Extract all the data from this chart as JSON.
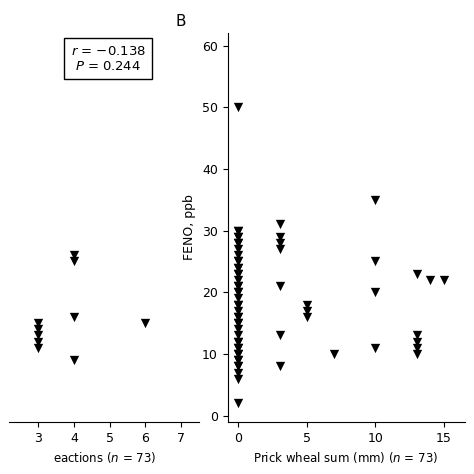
{
  "panel_B": {
    "xlabel": "Prick wheal sum (mm) ($\\it{n}$ = 73)",
    "ylabel": "FENO, ppb",
    "panel_label": "B",
    "xlim": [
      -0.8,
      16.5
    ],
    "ylim": [
      -1,
      62
    ],
    "xticks": [
      0,
      5,
      10,
      15
    ],
    "yticks": [
      0,
      10,
      20,
      30,
      40,
      50,
      60
    ],
    "x": [
      0,
      0,
      0,
      0,
      0,
      0,
      0,
      0,
      0,
      0,
      0,
      0,
      0,
      0,
      0,
      0,
      0,
      0,
      0,
      0,
      0,
      0,
      0,
      0,
      0,
      0,
      0,
      0,
      0,
      0,
      0,
      0,
      0,
      0,
      0,
      0,
      0,
      0,
      0,
      0,
      0,
      0,
      0,
      3,
      3,
      3,
      3,
      3,
      3,
      3,
      5,
      5,
      5,
      7,
      10,
      10,
      10,
      10,
      13,
      13,
      13,
      13,
      13,
      14,
      15
    ],
    "y": [
      50,
      30,
      30,
      29,
      29,
      28,
      28,
      27,
      26,
      25,
      25,
      24,
      24,
      23,
      23,
      22,
      21,
      21,
      20,
      20,
      19,
      18,
      18,
      17,
      16,
      16,
      15,
      15,
      14,
      13,
      12,
      12,
      11,
      11,
      10,
      10,
      9,
      9,
      8,
      8,
      7,
      6,
      2,
      31,
      29,
      28,
      27,
      21,
      13,
      8,
      18,
      17,
      16,
      10,
      35,
      25,
      20,
      11,
      23,
      13,
      12,
      11,
      10,
      22,
      22
    ]
  },
  "panel_A": {
    "annotation_line1": "$\\it{r}$ = −0.138",
    "annotation_line2": "$\\it{P}$ = 0.244",
    "xlim": [
      2.2,
      7.5
    ],
    "ylim": [
      -1,
      62
    ],
    "xticks": [
      3,
      4,
      5,
      6,
      7
    ],
    "xlabel": "eactions ($\\it{n}$ = 73)",
    "x": [
      3,
      3,
      3,
      3,
      3,
      4,
      4,
      4,
      4,
      6
    ],
    "y": [
      15,
      14,
      13,
      12,
      11,
      26,
      25,
      16,
      9,
      15
    ]
  },
  "marker": "v",
  "marker_color": "black",
  "marker_size": 5,
  "fig_facecolor": "white"
}
